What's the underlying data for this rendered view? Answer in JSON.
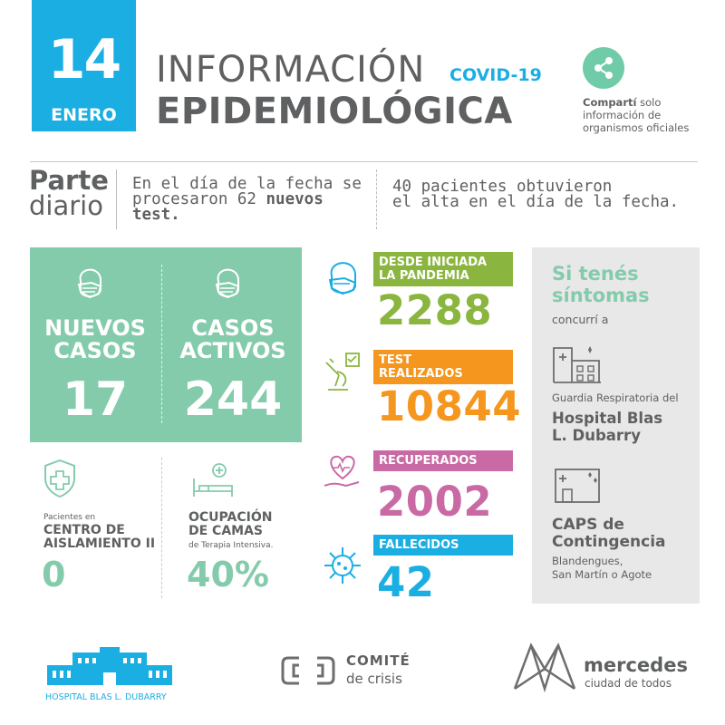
{
  "header": {
    "day": "14",
    "month": "ENERO",
    "title_line1": "INFORMACIÓN",
    "covid_tag": "COVID-19",
    "title_line2": "EPIDEMIOLÓGICA",
    "share_bold": "Compartí",
    "share_rest": " solo",
    "share_line2": "información de",
    "share_line3": "organismos oficiales"
  },
  "parte": {
    "title_bold": "Parte",
    "title_light": "diario",
    "text1_line1": "En el día de la fecha se",
    "text1_line2_a": "procesaron 62 ",
    "text1_line2_b": "nuevos",
    "text1_line3": "test.",
    "text2_line1": "40 pacientes obtuvieron",
    "text2_line2": "el alta en el día de la fecha."
  },
  "cases": {
    "nuevos_line1": "NUEVOS",
    "nuevos_line2": "CASOS",
    "nuevos_value": "17",
    "activos_line1": "CASOS",
    "activos_line2": "ACTIVOS",
    "activos_value": "244"
  },
  "isolation": {
    "caption": "Pacientes en",
    "label_line1": "CENTRO DE",
    "label_line2": "AISLAMIENTO II",
    "value": "0"
  },
  "beds": {
    "label_line1": "OCUPACIÓN",
    "label_line2": "DE CAMAS",
    "caption": "de Terapia Intensiva.",
    "value": "40%"
  },
  "stats": [
    {
      "label_line1": "DESDE INICIADA",
      "label_line2": "LA PANDEMIA",
      "value": "2288",
      "color": "#8ab63f"
    },
    {
      "label_line1": "TEST",
      "label_line2": "REALIZADOS",
      "value": "10844",
      "color": "#f5961f"
    },
    {
      "label_line1": "RECUPERADOS",
      "label_line2": "",
      "value": "2002",
      "color": "#c96aa5"
    },
    {
      "label_line1": "FALLECIDOS",
      "label_line2": "",
      "value": "42",
      "color": "#1aaee3"
    }
  ],
  "symptoms": {
    "title_line1": "Si tenés",
    "title_line2": "síntomas",
    "sub": "concurrí a",
    "guardia": "Guardia Respiratoria del",
    "hospital_line1": "Hospital Blas",
    "hospital_line2": "L. Dubarry",
    "caps_line1": "CAPS de",
    "caps_line2": "Contingencia",
    "caps_loc_line1": "Blandengues,",
    "caps_loc_line2": "San Martín o Agote"
  },
  "footer": {
    "hospital": "HOSPITAL BLAS L. DUBARRY",
    "comite_line1": "COMITÉ",
    "comite_line2": "de crisis",
    "mercedes": "mercedes",
    "mercedes_sub": "ciudad de todos"
  },
  "colors": {
    "blue": "#1aaee3",
    "green": "#84cbac",
    "gray_text": "#5f6062",
    "olive": "#8ab63f",
    "orange": "#f5961f",
    "pink": "#c96aa5",
    "panel": "#e8e8e8"
  },
  "icons": [
    "share-icon",
    "mask-face-icon",
    "shield-cross-icon",
    "hospital-bed-icon",
    "lab-test-icon",
    "heart-hand-icon",
    "virus-icon",
    "hospital-building-icon",
    "clinic-building-icon"
  ]
}
